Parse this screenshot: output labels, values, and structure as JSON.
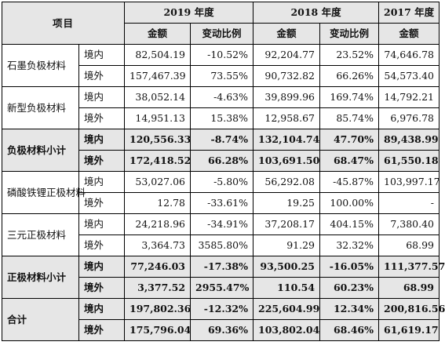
{
  "header": {
    "item_label": "项目",
    "y2019": "2019 年度",
    "y2018": "2018 年度",
    "y2017": "2017 年度",
    "amount": "金额",
    "change": "变动比例"
  },
  "rows": [
    {
      "cat": "石墨负极材料",
      "region": "境内",
      "a19": "82,504.19",
      "c19": "-10.52%",
      "a18": "92,204.77",
      "c18": "23.52%",
      "a17": "74,646.78"
    },
    {
      "region": "境外",
      "a19": "157,467.39",
      "c19": "73.55%",
      "a18": "90,732.82",
      "c18": "66.26%",
      "a17": "54,573.40"
    },
    {
      "cat": "新型负极材料",
      "region": "境内",
      "a19": "38,052.14",
      "c19": "-4.63%",
      "a18": "39,899.96",
      "c18": "169.74%",
      "a17": "14,792.21"
    },
    {
      "region": "境外",
      "a19": "14,951.13",
      "c19": "15.38%",
      "a18": "12,958.67",
      "c18": "85.74%",
      "a17": "6,976.78"
    },
    {
      "cat": "负极材料小计",
      "region": "境内",
      "a19": "120,556.33",
      "c19": "-8.74%",
      "a18": "132,104.74",
      "c18": "47.70%",
      "a17": "89,438.99"
    },
    {
      "region": "境外",
      "a19": "172,418.52",
      "c19": "66.28%",
      "a18": "103,691.50",
      "c18": "68.47%",
      "a17": "61,550.18"
    },
    {
      "cat": "磷酸铁锂正极材料",
      "region": "境内",
      "a19": "53,027.06",
      "c19": "-5.80%",
      "a18": "56,292.08",
      "c18": "-45.87%",
      "a17": "103,997.17"
    },
    {
      "region": "境外",
      "a19": "12.78",
      "c19": "-33.61%",
      "a18": "19.25",
      "c18": "100.00%",
      "a17": "-"
    },
    {
      "cat": "三元正极材料",
      "region": "境内",
      "a19": "24,218.96",
      "c19": "-34.91%",
      "a18": "37,208.17",
      "c18": "404.15%",
      "a17": "7,380.40"
    },
    {
      "region": "境外",
      "a19": "3,364.73",
      "c19": "3585.80%",
      "a18": "91.29",
      "c18": "32.32%",
      "a17": "68.99"
    },
    {
      "cat": "正极材料小计",
      "region": "境内",
      "a19": "77,246.03",
      "c19": "-17.38%",
      "a18": "93,500.25",
      "c18": "-16.05%",
      "a17": "111,377.57"
    },
    {
      "region": "境外",
      "a19": "3,377.52",
      "c19": "2955.47%",
      "a18": "110.54",
      "c18": "60.23%",
      "a17": "68.99"
    },
    {
      "cat": "合计",
      "region": "境内",
      "a19": "197,802.36",
      "c19": "-12.32%",
      "a18": "225,604.99",
      "c18": "12.34%",
      "a17": "200,816.56"
    },
    {
      "region": "境外",
      "a19": "175,796.04",
      "c19": "69.36%",
      "a18": "103,802.04",
      "c18": "68.46%",
      "a17": "61,619.17"
    }
  ]
}
